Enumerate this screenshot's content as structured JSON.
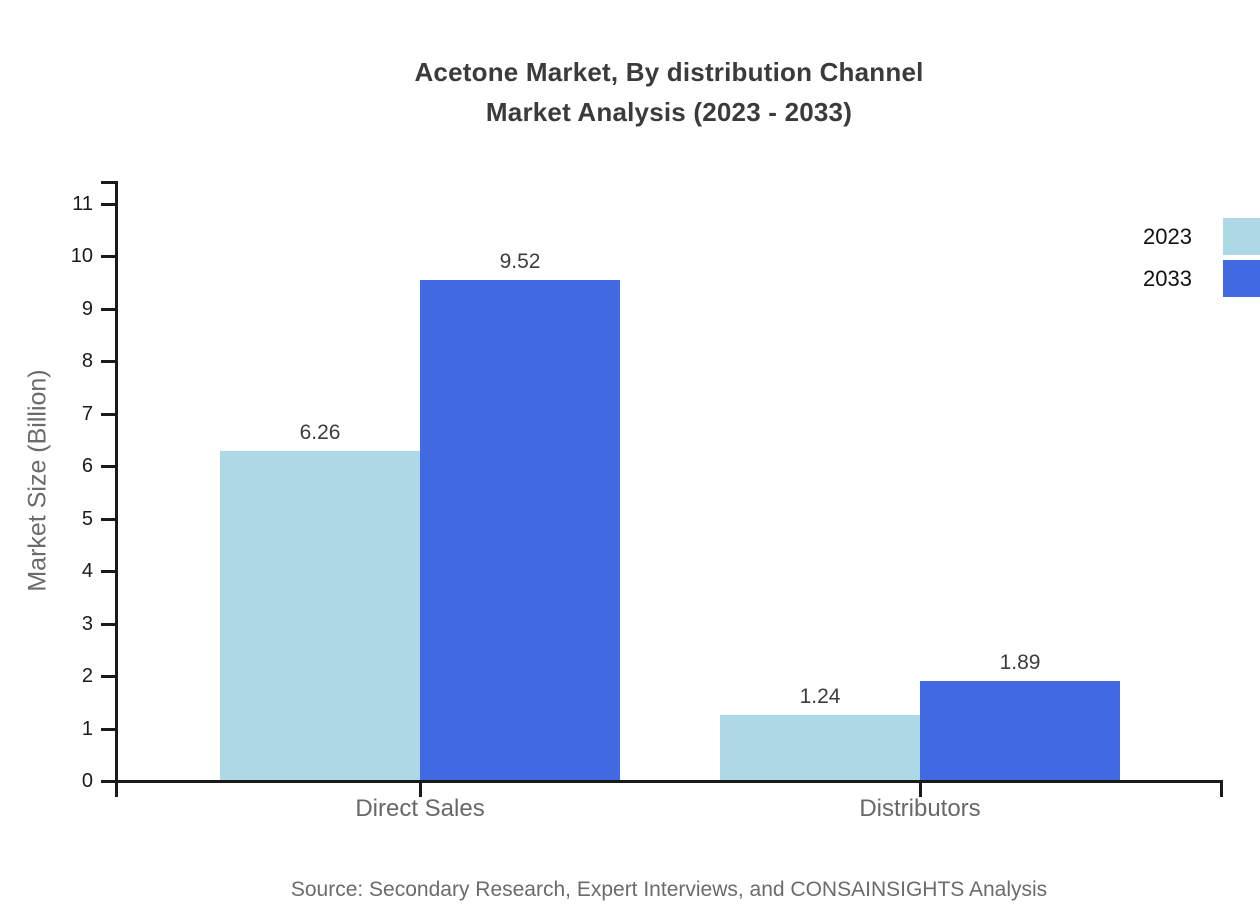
{
  "chart_data": {
    "type": "bar",
    "title_lines": [
      "Acetone Market, By distribution Channel",
      "Market Analysis (2023 - 2033)"
    ],
    "categories": [
      "Direct Sales",
      "Distributors"
    ],
    "series": [
      {
        "name": "2023",
        "color": "#ADD8E6",
        "values": [
          6.26,
          1.24
        ]
      },
      {
        "name": "2033",
        "color": "#4169E1",
        "values": [
          9.52,
          1.89
        ]
      }
    ],
    "value_label_decimals": 2,
    "xlabel": "",
    "ylabel": "Market Size (Billion)",
    "ylim": [
      0,
      11
    ],
    "ytick_step": 1,
    "ytick_labels": [
      "0",
      "1",
      "2",
      "3",
      "4",
      "5",
      "6",
      "7",
      "8",
      "9",
      "10",
      "11"
    ],
    "grid": false,
    "legend_position": "top-right",
    "axis_color": "#1a1a1a"
  },
  "source_note": "Source: Secondary Research, Expert Interviews, and CONSAINSIGHTS Analysis"
}
